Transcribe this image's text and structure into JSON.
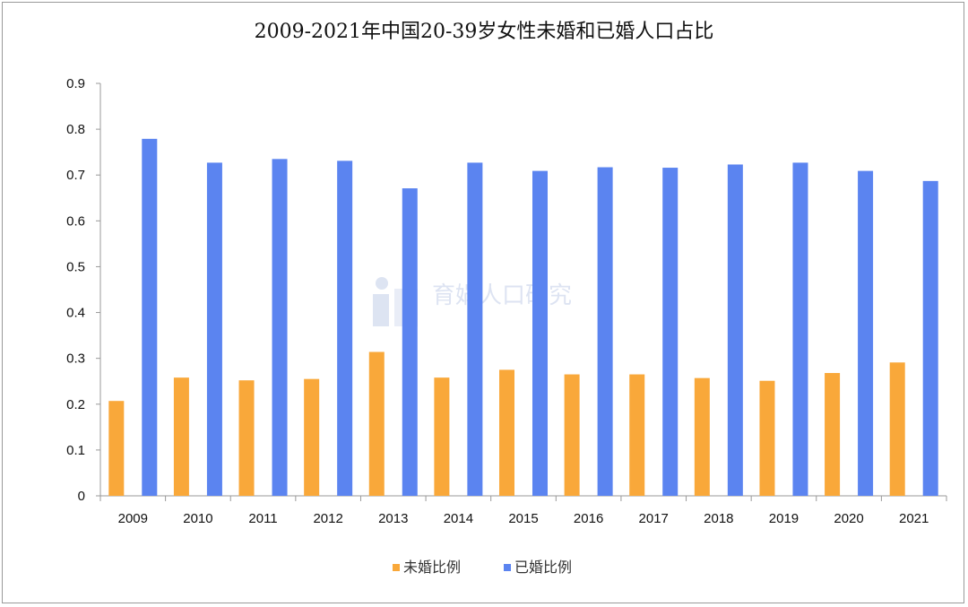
{
  "chart_data": {
    "type": "bar",
    "title": "2009-2021年中国20-39岁女性未婚和已婚人口占比",
    "categories": [
      "2009",
      "2010",
      "2011",
      "2012",
      "2013",
      "2014",
      "2015",
      "2016",
      "2017",
      "2018",
      "2019",
      "2020",
      "2021"
    ],
    "series": [
      {
        "name": "未婚比例",
        "color": "#f9a83a",
        "values": [
          0.207,
          0.258,
          0.252,
          0.255,
          0.314,
          0.258,
          0.275,
          0.265,
          0.265,
          0.257,
          0.251,
          0.268,
          0.291
        ]
      },
      {
        "name": "已婚比例",
        "color": "#5b84f0",
        "values": [
          0.779,
          0.727,
          0.735,
          0.731,
          0.671,
          0.727,
          0.709,
          0.717,
          0.716,
          0.723,
          0.727,
          0.709,
          0.687
        ]
      }
    ],
    "ylim": [
      0,
      0.9
    ],
    "yticks": [
      "0",
      "0.1",
      "0.2",
      "0.3",
      "0.4",
      "0.5",
      "0.6",
      "0.7",
      "0.8",
      "0.9"
    ],
    "grid": false,
    "legend_position": "bottom",
    "watermark": "育娲人口研究"
  }
}
